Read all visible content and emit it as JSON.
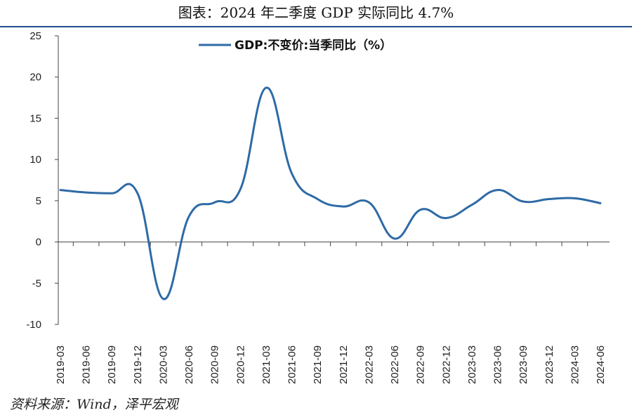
{
  "title": "图表：2024 年二季度 GDP 实际同比 4.7%",
  "source": "资料来源：Wind，泽平宏观",
  "chart_data": {
    "type": "line",
    "title": "",
    "xlabel": "",
    "ylabel": "",
    "ylim": [
      -10,
      25
    ],
    "yticks": [
      "25",
      "20",
      "15",
      "10",
      "5",
      "0",
      "-5",
      "-10"
    ],
    "categories": [
      "2019-03",
      "2019-06",
      "2019-09",
      "2019-12",
      "2020-03",
      "2020-06",
      "2020-09",
      "2020-12",
      "2021-03",
      "2021-06",
      "2021-09",
      "2021-12",
      "2022-03",
      "2022-06",
      "2022-09",
      "2022-12",
      "2023-03",
      "2023-06",
      "2023-09",
      "2023-12",
      "2024-03",
      "2024-06"
    ],
    "series": [
      {
        "name": "GDP:不变价:当季同比（%）",
        "color": "#2e6aa6",
        "values": [
          6.3,
          6.0,
          5.9,
          5.9,
          -6.9,
          3.1,
          4.8,
          6.4,
          18.7,
          8.3,
          5.2,
          4.3,
          4.8,
          0.4,
          3.9,
          2.9,
          4.5,
          6.3,
          4.9,
          5.2,
          5.3,
          4.7
        ]
      }
    ],
    "legend": "top-center",
    "grid": false
  }
}
